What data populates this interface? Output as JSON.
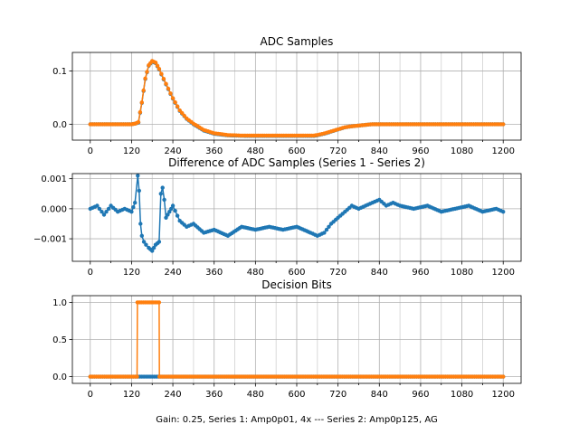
{
  "colors": {
    "series1": "#1f77b4",
    "series2": "#ff7f0e",
    "grid": "#b0b0b0"
  },
  "chart_data": [
    {
      "type": "line",
      "title": "ADC Samples",
      "xlabel": "",
      "ylabel": "",
      "xlim": [
        -52,
        1252
      ],
      "ylim": [
        -0.03,
        0.135
      ],
      "xticks": [
        0,
        120,
        240,
        360,
        480,
        600,
        720,
        840,
        960,
        1080,
        1200
      ],
      "xtick_labels": [
        "0",
        "120",
        "240",
        "360",
        "480",
        "600",
        "720",
        "840",
        "960",
        "1080",
        "1200"
      ],
      "yticks": [
        0.0,
        0.1
      ],
      "ytick_labels": [
        "0.0",
        "0.1"
      ],
      "grid": true,
      "series": [
        {
          "name": "Series 1",
          "color": "#1f77b4",
          "x": [
            0,
            120,
            130,
            140,
            150,
            160,
            170,
            180,
            190,
            200,
            220,
            240,
            260,
            280,
            300,
            330,
            360,
            400,
            450,
            500,
            550,
            600,
            650,
            660,
            680,
            700,
            720,
            740,
            760,
            790,
            820,
            850,
            900,
            960,
            1040,
            1120,
            1200
          ],
          "y": [
            0.0,
            0.0,
            0.001,
            0.003,
            0.04,
            0.085,
            0.11,
            0.118,
            0.115,
            0.103,
            0.075,
            0.048,
            0.025,
            0.01,
            0.0,
            -0.012,
            -0.018,
            -0.021,
            -0.022,
            -0.022,
            -0.022,
            -0.022,
            -0.022,
            -0.021,
            -0.018,
            -0.014,
            -0.01,
            -0.006,
            -0.004,
            -0.002,
            0.0,
            0.0,
            0.0,
            0.0,
            0.0,
            0.0,
            0.0
          ]
        },
        {
          "name": "Series 2",
          "color": "#ff7f0e",
          "x": [
            0,
            120,
            130,
            140,
            150,
            160,
            170,
            180,
            190,
            200,
            220,
            240,
            260,
            280,
            300,
            330,
            360,
            400,
            450,
            500,
            550,
            600,
            650,
            660,
            680,
            700,
            720,
            740,
            760,
            790,
            820,
            850,
            900,
            960,
            1040,
            1120,
            1200
          ],
          "y": [
            0.0,
            0.0,
            0.001,
            0.004,
            0.041,
            0.086,
            0.111,
            0.119,
            0.116,
            0.104,
            0.076,
            0.049,
            0.026,
            0.011,
            0.001,
            -0.011,
            -0.017,
            -0.0205,
            -0.0215,
            -0.0215,
            -0.0215,
            -0.0215,
            -0.0213,
            -0.0203,
            -0.0174,
            -0.0135,
            -0.0097,
            -0.0058,
            -0.0039,
            -0.0019,
            0.0,
            0.0,
            0.0,
            0.0,
            0.0,
            0.0,
            0.0
          ]
        }
      ]
    },
    {
      "type": "line",
      "title": "Difference of ADC Samples (Series 1 - Series 2)",
      "xlabel": "",
      "ylabel": "",
      "xlim": [
        -52,
        1252
      ],
      "ylim": [
        -0.00175,
        0.00117
      ],
      "xticks": [
        0,
        120,
        240,
        360,
        480,
        600,
        720,
        840,
        960,
        1080,
        1200
      ],
      "xtick_labels": [
        "0",
        "120",
        "240",
        "360",
        "480",
        "600",
        "720",
        "840",
        "960",
        "1080",
        "1200"
      ],
      "yticks": [
        -0.001,
        0.0,
        0.001
      ],
      "ytick_labels": [
        "−0.001",
        "0.000",
        "0.001"
      ],
      "grid": true,
      "series": [
        {
          "name": "Series 1 - Series 2",
          "color": "#1f77b4",
          "x": [
            0,
            20,
            40,
            60,
            80,
            100,
            120,
            130,
            138,
            142,
            146,
            150,
            156,
            162,
            170,
            180,
            190,
            200,
            205,
            210,
            215,
            220,
            230,
            240,
            260,
            280,
            300,
            330,
            360,
            400,
            440,
            480,
            520,
            560,
            600,
            640,
            660,
            680,
            700,
            720,
            740,
            760,
            780,
            800,
            820,
            840,
            860,
            880,
            900,
            940,
            980,
            1020,
            1060,
            1100,
            1140,
            1180,
            1200
          ],
          "y": [
            0.0,
            0.0001,
            -0.0002,
            0.0001,
            -0.0001,
            0.0,
            -0.0001,
            0.0002,
            0.0011,
            0.0006,
            -0.0005,
            -0.0009,
            -0.0011,
            -0.0012,
            -0.0013,
            -0.0014,
            -0.0012,
            -0.0011,
            0.0005,
            0.0007,
            0.0003,
            -0.0003,
            -0.0001,
            0.0001,
            -0.0004,
            -0.0006,
            -0.0005,
            -0.0008,
            -0.0007,
            -0.0009,
            -0.0006,
            -0.0007,
            -0.0006,
            -0.0007,
            -0.0006,
            -0.0008,
            -0.0009,
            -0.0008,
            -0.0005,
            -0.0003,
            -0.0001,
            0.0001,
            0.0,
            0.0001,
            0.0002,
            0.0003,
            0.0001,
            0.0002,
            0.0001,
            0.0,
            0.0001,
            -0.0001,
            0.0,
            0.0001,
            -0.0001,
            0.0,
            -0.0001
          ]
        }
      ]
    },
    {
      "type": "line",
      "title": "Decision Bits",
      "xlabel": "Gain: 0.25, Series 1: Amp0p01, 4x --- Series 2: Amp0p125, AG",
      "ylabel": "",
      "xlim": [
        -52,
        1252
      ],
      "ylim": [
        -0.09,
        1.09
      ],
      "xticks": [
        0,
        120,
        240,
        360,
        480,
        600,
        720,
        840,
        960,
        1080,
        1200
      ],
      "xtick_labels": [
        "0",
        "120",
        "240",
        "360",
        "480",
        "600",
        "720",
        "840",
        "960",
        "1080",
        "1200"
      ],
      "yticks": [
        0.0,
        0.5,
        1.0
      ],
      "ytick_labels": [
        "0.0",
        "0.5",
        "1.0"
      ],
      "grid": true,
      "series": [
        {
          "name": "Series 1",
          "color": "#1f77b4",
          "x": [
            0,
            1200
          ],
          "y": [
            0,
            0
          ]
        },
        {
          "name": "Series 2",
          "color": "#ff7f0e",
          "x": [
            0,
            136,
            137,
            200,
            201,
            1200
          ],
          "y": [
            0,
            0,
            1,
            1,
            0,
            0
          ]
        }
      ]
    }
  ]
}
